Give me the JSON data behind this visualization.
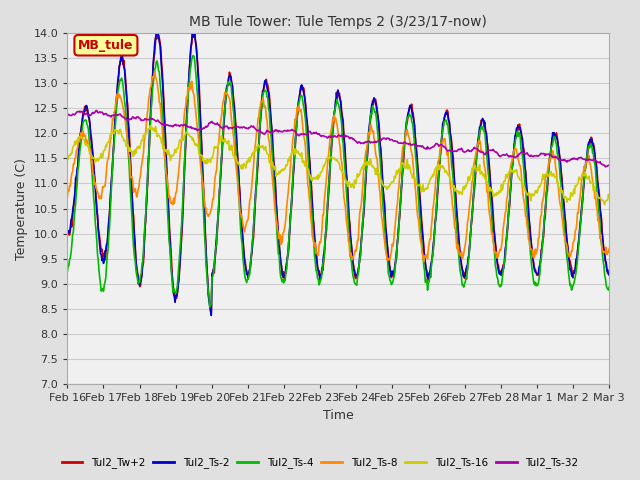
{
  "title": "MB Tule Tower: Tule Temps 2 (3/23/17-now)",
  "xlabel": "Time",
  "ylabel": "Temperature (C)",
  "ylim": [
    7.0,
    14.0
  ],
  "yticks": [
    7.0,
    7.5,
    8.0,
    8.5,
    9.0,
    9.5,
    10.0,
    10.5,
    11.0,
    11.5,
    12.0,
    12.5,
    13.0,
    13.5,
    14.0
  ],
  "legend_label": "MB_tule",
  "series": [
    {
      "label": "Tul2_Tw+2",
      "color": "#cc0000"
    },
    {
      "label": "Tul2_Ts-2",
      "color": "#0000cc"
    },
    {
      "label": "Tul2_Ts-4",
      "color": "#00bb00"
    },
    {
      "label": "Tul2_Ts-8",
      "color": "#ff8800"
    },
    {
      "label": "Tul2_Ts-16",
      "color": "#cccc00"
    },
    {
      "label": "Tul2_Ts-32",
      "color": "#aa00aa"
    }
  ],
  "bg_color": "#e0e0e0",
  "plot_bg": "#f0f0f0",
  "grid_color": "#cccccc",
  "x_tick_labels": [
    "Feb 16",
    "Feb 17",
    "Feb 18",
    "Feb 19",
    "Feb 20",
    "Feb 21",
    "Feb 22",
    "Feb 23",
    "Feb 24",
    "Feb 25",
    "Feb 26",
    "Feb 27",
    "Feb 28",
    "Mar 1",
    "Mar 2",
    "Mar 3"
  ]
}
